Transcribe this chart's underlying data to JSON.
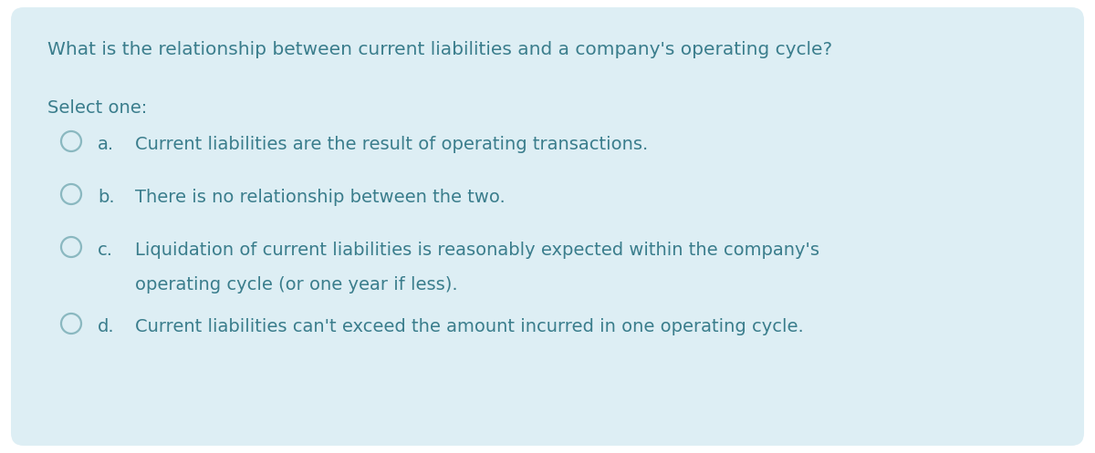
{
  "background_color": "#ddeef4",
  "outer_background": "#ffffff",
  "text_color": "#3a7d8c",
  "circle_color": "#8ab8c0",
  "question": "What is the relationship between current liabilities and a company's operating cycle?",
  "select_label": "Select one:",
  "options": [
    {
      "letter": "a.",
      "text": "Current liabilities are the result of operating transactions.",
      "line2": ""
    },
    {
      "letter": "b.",
      "text": "There is no relationship between the two.",
      "line2": ""
    },
    {
      "letter": "c.",
      "text": "Liquidation of current liabilities is reasonably expected within the company's",
      "line2": "operating cycle (or one year if less)."
    },
    {
      "letter": "d.",
      "text": "Current liabilities can't exceed the amount incurred in one operating cycle.",
      "line2": ""
    }
  ],
  "question_fontsize": 14.5,
  "select_fontsize": 14,
  "option_fontsize": 14
}
